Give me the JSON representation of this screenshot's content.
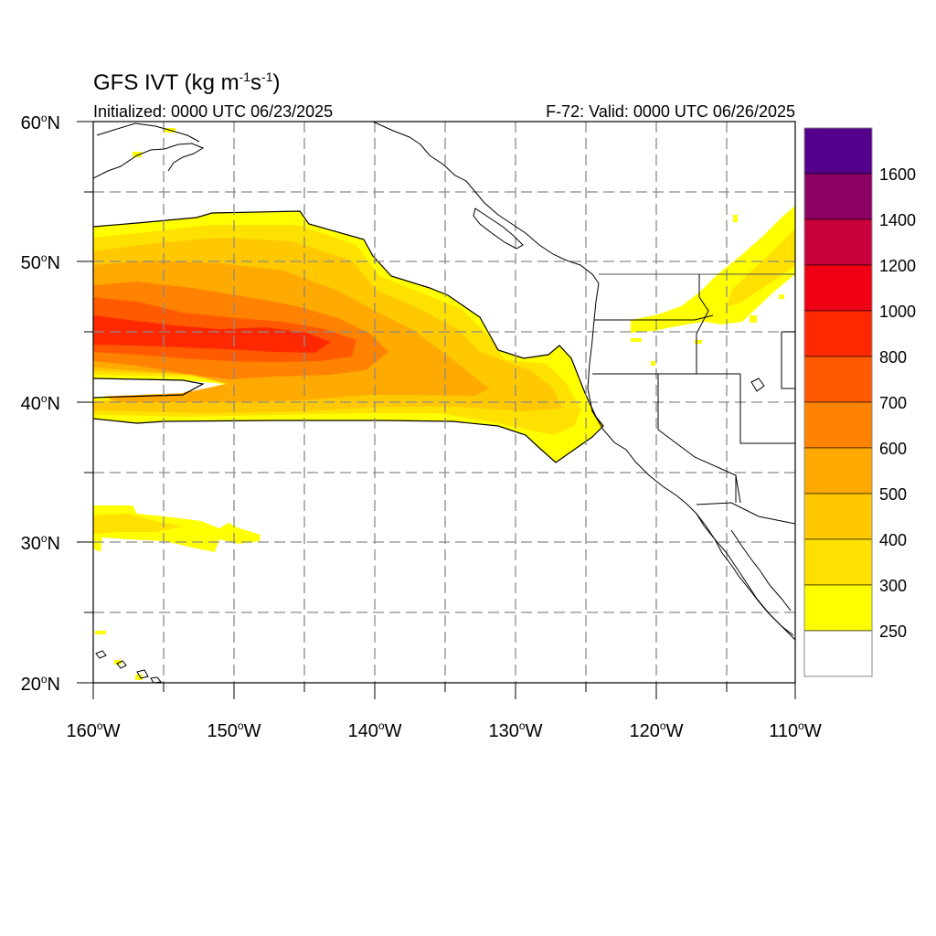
{
  "title": {
    "main": "GFS IVT (kg m",
    "sup1": "-1",
    "mid": "s",
    "sup2": "-1",
    "close": ")"
  },
  "subtitle_left": "Initialized: 0000 UTC 06/23/2025",
  "subtitle_right": "F-72: Valid: 0000 UTC 06/26/2025",
  "lat_labels": [
    {
      "num": "60",
      "deg": "o",
      "dir": "N"
    },
    {
      "num": "50",
      "deg": "o",
      "dir": "N"
    },
    {
      "num": "40",
      "deg": "o",
      "dir": "N"
    },
    {
      "num": "30",
      "deg": "o",
      "dir": "N"
    },
    {
      "num": "20",
      "deg": "o",
      "dir": "N"
    }
  ],
  "lon_labels": [
    {
      "num": "160",
      "deg": "o",
      "dir": "W"
    },
    {
      "num": "150",
      "deg": "o",
      "dir": "W"
    },
    {
      "num": "140",
      "deg": "o",
      "dir": "W"
    },
    {
      "num": "130",
      "deg": "o",
      "dir": "W"
    },
    {
      "num": "120",
      "deg": "o",
      "dir": "W"
    },
    {
      "num": "110",
      "deg": "o",
      "dir": "W"
    }
  ],
  "colorbar": {
    "levels": [
      "1600",
      "1400",
      "1200",
      "1000",
      "800",
      "700",
      "600",
      "500",
      "400",
      "300",
      "250"
    ],
    "colors": [
      "#54008c",
      "#8c0064",
      "#c8003c",
      "#f00014",
      "#ff2800",
      "#ff5a00",
      "#ff8200",
      "#ffaa00",
      "#ffc800",
      "#ffe100",
      "#ffff00",
      "#ffffff"
    ]
  },
  "ivt_colors": {
    "c250": "#ffff00",
    "c300": "#ffe100",
    "c400": "#ffc800",
    "c500": "#ffaa00",
    "c600": "#ff8200",
    "c700": "#ff5a00",
    "c800": "#ff2800"
  }
}
